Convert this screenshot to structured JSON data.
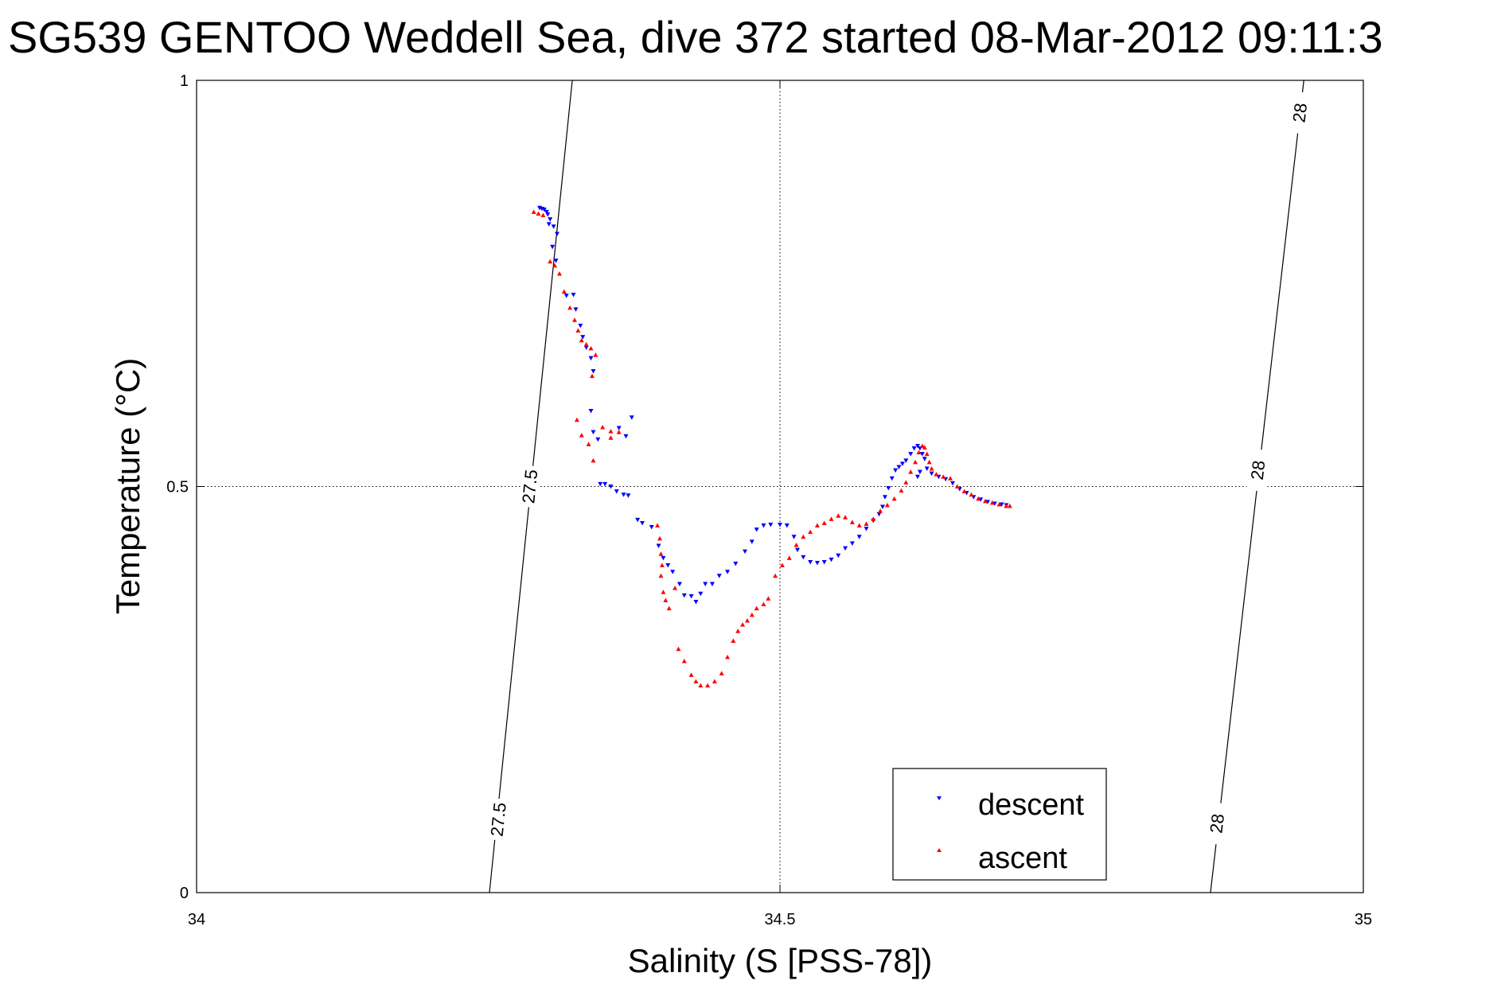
{
  "chart_data": {
    "type": "scatter",
    "title": "SG539 GENTOO Weddell Sea, dive 372 started 08-Mar-2012 09:11:3",
    "xlabel": "Salinity (S [PSS-78])",
    "ylabel": "Temperature (°C)",
    "xlim": [
      34,
      35
    ],
    "ylim": [
      0,
      1
    ],
    "xticks": [
      34,
      34.5,
      35
    ],
    "xtick_labels": [
      "34",
      "34.5",
      "35"
    ],
    "yticks": [
      0,
      0.5,
      1
    ],
    "ytick_labels": [
      "0",
      "0.5",
      "1"
    ],
    "grid": true,
    "legend_position": "bottom-right",
    "isopycnals": [
      {
        "label": "27.5",
        "x": [
          34.322,
          34.251
        ],
        "y": [
          1,
          0
        ],
        "label_points": [
          [
            34.286,
            0.5
          ],
          [
            34.259,
            0.09
          ]
        ]
      },
      {
        "label": "28",
        "x": [
          34.949,
          34.869
        ],
        "y": [
          1,
          0
        ],
        "label_points": [
          [
            34.946,
            0.96
          ],
          [
            34.91,
            0.52
          ],
          [
            34.875,
            0.085
          ]
        ]
      }
    ],
    "series": [
      {
        "name": "descent",
        "color": "#0000ff",
        "marker": "triangle-down",
        "points": [
          [
            34.294,
            0.843
          ],
          [
            34.296,
            0.842
          ],
          [
            34.298,
            0.841
          ],
          [
            34.3,
            0.838
          ],
          [
            34.301,
            0.835
          ],
          [
            34.303,
            0.829
          ],
          [
            34.302,
            0.823
          ],
          [
            34.306,
            0.82
          ],
          [
            34.309,
            0.811
          ],
          [
            34.305,
            0.795
          ],
          [
            34.308,
            0.778
          ],
          [
            34.317,
            0.735
          ],
          [
            34.323,
            0.736
          ],
          [
            34.325,
            0.718
          ],
          [
            34.329,
            0.698
          ],
          [
            34.331,
            0.684
          ],
          [
            34.334,
            0.671
          ],
          [
            34.338,
            0.658
          ],
          [
            34.34,
            0.642
          ],
          [
            34.338,
            0.593
          ],
          [
            34.34,
            0.567
          ],
          [
            34.344,
            0.558
          ],
          [
            34.346,
            0.503
          ],
          [
            34.35,
            0.503
          ],
          [
            34.355,
            0.5
          ],
          [
            34.36,
            0.494
          ],
          [
            34.366,
            0.49
          ],
          [
            34.37,
            0.489
          ],
          [
            34.362,
            0.572
          ],
          [
            34.368,
            0.562
          ],
          [
            34.373,
            0.585
          ],
          [
            34.378,
            0.459
          ],
          [
            34.382,
            0.455
          ],
          [
            34.39,
            0.45
          ],
          [
            34.396,
            0.427
          ],
          [
            34.4,
            0.412
          ],
          [
            34.404,
            0.403
          ],
          [
            34.408,
            0.395
          ],
          [
            34.414,
            0.38
          ],
          [
            34.418,
            0.366
          ],
          [
            34.424,
            0.365
          ],
          [
            34.428,
            0.358
          ],
          [
            34.432,
            0.368
          ],
          [
            34.436,
            0.38
          ],
          [
            34.442,
            0.38
          ],
          [
            34.448,
            0.39
          ],
          [
            34.455,
            0.395
          ],
          [
            34.462,
            0.405
          ],
          [
            34.47,
            0.42
          ],
          [
            34.476,
            0.432
          ],
          [
            34.48,
            0.447
          ],
          [
            34.486,
            0.452
          ],
          [
            34.492,
            0.453
          ],
          [
            34.5,
            0.453
          ],
          [
            34.506,
            0.452
          ],
          [
            34.512,
            0.438
          ],
          [
            34.515,
            0.422
          ],
          [
            34.52,
            0.413
          ],
          [
            34.526,
            0.407
          ],
          [
            34.532,
            0.406
          ],
          [
            34.538,
            0.407
          ],
          [
            34.544,
            0.41
          ],
          [
            34.55,
            0.415
          ],
          [
            34.556,
            0.424
          ],
          [
            34.562,
            0.43
          ],
          [
            34.568,
            0.438
          ],
          [
            34.574,
            0.448
          ],
          [
            34.58,
            0.458
          ],
          [
            34.585,
            0.466
          ],
          [
            34.588,
            0.475
          ],
          [
            34.59,
            0.487
          ],
          [
            34.593,
            0.498
          ],
          [
            34.596,
            0.51
          ],
          [
            34.599,
            0.52
          ],
          [
            34.602,
            0.524
          ],
          [
            34.605,
            0.528
          ],
          [
            34.608,
            0.532
          ],
          [
            34.612,
            0.54
          ],
          [
            34.615,
            0.547
          ],
          [
            34.618,
            0.55
          ],
          [
            34.62,
            0.547
          ],
          [
            34.622,
            0.54
          ],
          [
            34.624,
            0.534
          ],
          [
            34.62,
            0.518
          ],
          [
            34.618,
            0.512
          ],
          [
            34.626,
            0.522
          ],
          [
            34.63,
            0.516
          ],
          [
            34.636,
            0.512
          ],
          [
            34.642,
            0.509
          ],
          [
            34.648,
            0.504
          ],
          [
            34.654,
            0.497
          ],
          [
            34.66,
            0.492
          ],
          [
            34.666,
            0.487
          ],
          [
            34.672,
            0.484
          ],
          [
            34.678,
            0.481
          ],
          [
            34.684,
            0.479
          ],
          [
            34.69,
            0.478
          ],
          [
            34.694,
            0.477
          ]
        ]
      },
      {
        "name": "ascent",
        "color": "#ff0000",
        "marker": "triangle-up",
        "points": [
          [
            34.289,
            0.838
          ],
          [
            34.293,
            0.836
          ],
          [
            34.297,
            0.834
          ],
          [
            34.303,
            0.777
          ],
          [
            34.307,
            0.772
          ],
          [
            34.311,
            0.762
          ],
          [
            34.315,
            0.74
          ],
          [
            34.32,
            0.72
          ],
          [
            34.324,
            0.705
          ],
          [
            34.327,
            0.692
          ],
          [
            34.33,
            0.68
          ],
          [
            34.334,
            0.675
          ],
          [
            34.338,
            0.67
          ],
          [
            34.342,
            0.662
          ],
          [
            34.339,
            0.636
          ],
          [
            34.326,
            0.582
          ],
          [
            34.33,
            0.563
          ],
          [
            34.336,
            0.552
          ],
          [
            34.34,
            0.532
          ],
          [
            34.348,
            0.573
          ],
          [
            34.355,
            0.568
          ],
          [
            34.362,
            0.567
          ],
          [
            34.355,
            0.56
          ],
          [
            34.395,
            0.452
          ],
          [
            34.397,
            0.436
          ],
          [
            34.398,
            0.417
          ],
          [
            34.399,
            0.403
          ],
          [
            34.398,
            0.39
          ],
          [
            34.4,
            0.37
          ],
          [
            34.402,
            0.36
          ],
          [
            34.405,
            0.35
          ],
          [
            34.41,
            0.375
          ],
          [
            34.413,
            0.3
          ],
          [
            34.418,
            0.285
          ],
          [
            34.424,
            0.268
          ],
          [
            34.428,
            0.26
          ],
          [
            34.432,
            0.255
          ],
          [
            34.438,
            0.255
          ],
          [
            34.444,
            0.26
          ],
          [
            34.45,
            0.27
          ],
          [
            34.455,
            0.29
          ],
          [
            34.46,
            0.31
          ],
          [
            34.464,
            0.322
          ],
          [
            34.468,
            0.33
          ],
          [
            34.472,
            0.335
          ],
          [
            34.476,
            0.342
          ],
          [
            34.48,
            0.35
          ],
          [
            34.486,
            0.355
          ],
          [
            34.49,
            0.362
          ],
          [
            34.496,
            0.39
          ],
          [
            34.502,
            0.403
          ],
          [
            34.508,
            0.412
          ],
          [
            34.514,
            0.428
          ],
          [
            34.52,
            0.438
          ],
          [
            34.526,
            0.444
          ],
          [
            34.532,
            0.452
          ],
          [
            34.538,
            0.455
          ],
          [
            34.544,
            0.46
          ],
          [
            34.55,
            0.464
          ],
          [
            34.556,
            0.462
          ],
          [
            34.562,
            0.456
          ],
          [
            34.568,
            0.452
          ],
          [
            34.574,
            0.454
          ],
          [
            34.58,
            0.46
          ],
          [
            34.586,
            0.47
          ],
          [
            34.592,
            0.477
          ],
          [
            34.598,
            0.485
          ],
          [
            34.604,
            0.495
          ],
          [
            34.608,
            0.505
          ],
          [
            34.612,
            0.518
          ],
          [
            34.616,
            0.53
          ],
          [
            34.619,
            0.542
          ],
          [
            34.622,
            0.55
          ],
          [
            34.624,
            0.548
          ],
          [
            34.626,
            0.54
          ],
          [
            34.628,
            0.53
          ],
          [
            34.63,
            0.522
          ],
          [
            34.634,
            0.515
          ],
          [
            34.64,
            0.512
          ],
          [
            34.646,
            0.51
          ],
          [
            34.652,
            0.5
          ],
          [
            34.658,
            0.494
          ],
          [
            34.664,
            0.49
          ],
          [
            34.67,
            0.485
          ],
          [
            34.676,
            0.482
          ],
          [
            34.682,
            0.48
          ],
          [
            34.688,
            0.478
          ],
          [
            34.694,
            0.476
          ],
          [
            34.697,
            0.476
          ]
        ]
      }
    ]
  }
}
